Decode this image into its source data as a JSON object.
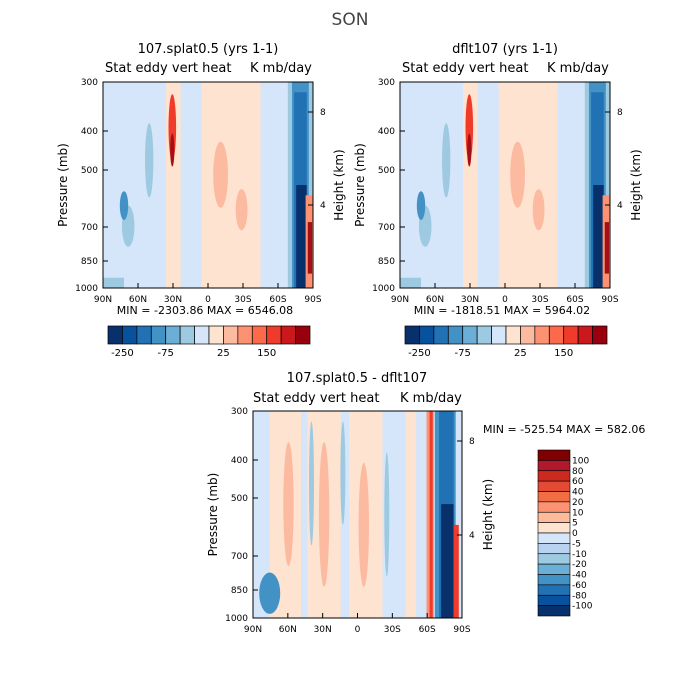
{
  "season": "SON",
  "chart_data": [
    {
      "type": "heatmap",
      "title": "107.splat0.5 (yrs 1-1)",
      "subtitle_left": "Stat eddy vert heat",
      "subtitle_right": "K mb/day",
      "ylabel": "Pressure (mb)",
      "ylabel_right": "Height (km)",
      "x_ticks": [
        "90N",
        "60N",
        "30N",
        "0",
        "30S",
        "60S",
        "90S"
      ],
      "y_ticks": [
        "300",
        "400",
        "500",
        "700",
        "850",
        "1000"
      ],
      "y_ticks_right": [
        "8",
        "4"
      ],
      "min_max": "MIN = -2303.86   MAX = 6546.08",
      "colorbar_ticks": [
        "-250",
        "-75",
        "25",
        "150"
      ],
      "colorbar_levels": [
        -250,
        -200,
        -150,
        -100,
        -75,
        -50,
        -25,
        0,
        25,
        50,
        75,
        100,
        150,
        200,
        250
      ]
    },
    {
      "type": "heatmap",
      "title": "dflt107 (yrs 1-1)",
      "subtitle_left": "Stat eddy vert heat",
      "subtitle_right": "K mb/day",
      "ylabel": "Pressure (mb)",
      "ylabel_right": "Height (km)",
      "x_ticks": [
        "90N",
        "60N",
        "30N",
        "0",
        "30S",
        "60S",
        "90S"
      ],
      "y_ticks": [
        "300",
        "400",
        "500",
        "700",
        "850",
        "1000"
      ],
      "y_ticks_right": [
        "8",
        "4"
      ],
      "min_max": "MIN = -1818.51   MAX = 5964.02",
      "colorbar_ticks": [
        "-250",
        "-75",
        "25",
        "150"
      ],
      "colorbar_levels": [
        -250,
        -200,
        -150,
        -100,
        -75,
        -50,
        -25,
        0,
        25,
        50,
        75,
        100,
        150,
        200,
        250
      ]
    },
    {
      "type": "heatmap",
      "title": "107.splat0.5 - dflt107",
      "subtitle_left": "Stat eddy vert heat",
      "subtitle_right": "K mb/day",
      "ylabel": "Pressure (mb)",
      "ylabel_right": "Height (km)",
      "x_ticks": [
        "90N",
        "60N",
        "30N",
        "0",
        "30S",
        "60S",
        "90S"
      ],
      "y_ticks": [
        "300",
        "400",
        "500",
        "700",
        "850",
        "1000"
      ],
      "y_ticks_right": [
        "8",
        "4"
      ],
      "min_max": "MIN = -525.54   MAX = 582.06",
      "colorbar_ticks": [
        "100",
        "80",
        "60",
        "40",
        "20",
        "10",
        "5",
        "0",
        "-5",
        "-10",
        "-20",
        "-40",
        "-60",
        "-80",
        "-100"
      ]
    }
  ],
  "colors": {
    "bar14": [
      "#08306b",
      "#08519c",
      "#2171b5",
      "#4292c6",
      "#6baed6",
      "#9ecae1",
      "#d6e6fa",
      "#fde3d0",
      "#fcbba1",
      "#fc9272",
      "#fb6a4a",
      "#ef3b2c",
      "#cb181d",
      "#99000d"
    ],
    "bar16": [
      "#7f0000",
      "#b2182b",
      "#cc2a1e",
      "#e34a33",
      "#f16d43",
      "#fc9272",
      "#fdbb9b",
      "#fde3d0",
      "#d6e6fa",
      "#b9d2f2",
      "#9ecae1",
      "#6baed6",
      "#4292c6",
      "#2171b5",
      "#08519c",
      "#08306b"
    ]
  }
}
